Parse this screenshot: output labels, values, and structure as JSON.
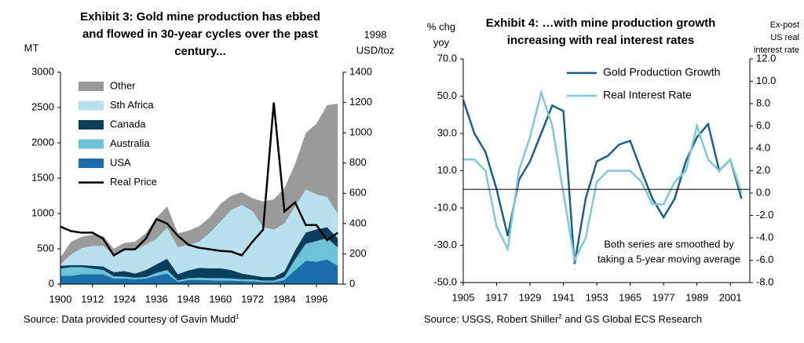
{
  "chart_data": [
    {
      "type": "stacked_area",
      "title": [
        "Exhibit 3: Gold mine production has ebbed",
        "and flowed in 30-year cycles over the past",
        "century..."
      ],
      "y_label": "MT",
      "y2_label": [
        "1998",
        "USD/toz"
      ],
      "source": [
        "Source: Data provided courtesy of Gavin Mudd",
        "1"
      ],
      "x": [
        1900,
        1904,
        1908,
        1912,
        1916,
        1920,
        1924,
        1928,
        1932,
        1936,
        1940,
        1944,
        1948,
        1952,
        1956,
        1960,
        1964,
        1968,
        1972,
        1976,
        1980,
        1984,
        1988,
        1992,
        1996,
        2000,
        2004
      ],
      "xlim": [
        1900,
        2006
      ],
      "xticks": [
        1900,
        1912,
        1924,
        1936,
        1948,
        1960,
        1972,
        1984,
        1996
      ],
      "ylim": [
        0,
        3000
      ],
      "yticks": [
        0,
        500,
        1000,
        1500,
        2000,
        2500,
        3000
      ],
      "y2lim": [
        0,
        1400
      ],
      "y2ticks": [
        0,
        200,
        400,
        600,
        800,
        1000,
        1200,
        1400
      ],
      "legend": "upper left",
      "series": [
        {
          "name": "USA",
          "color": "#1b6ea8",
          "values": [
            120,
            120,
            140,
            140,
            140,
            80,
            80,
            70,
            80,
            120,
            150,
            30,
            60,
            60,
            55,
            50,
            50,
            45,
            40,
            30,
            30,
            60,
            200,
            330,
            320,
            350,
            260
          ]
        },
        {
          "name": "Australia",
          "color": "#6dc3da",
          "values": [
            100,
            120,
            100,
            80,
            60,
            30,
            25,
            20,
            20,
            40,
            50,
            20,
            25,
            30,
            30,
            35,
            30,
            25,
            25,
            20,
            20,
            40,
            150,
            240,
            290,
            300,
            260
          ]
        },
        {
          "name": "Canada",
          "color": "#0b3d5c",
          "values": [
            40,
            30,
            30,
            40,
            50,
            60,
            80,
            60,
            100,
            120,
            160,
            90,
            110,
            140,
            140,
            140,
            120,
            80,
            60,
            50,
            50,
            80,
            130,
            160,
            165,
            155,
            130
          ]
        },
        {
          "name": "Sth Africa",
          "color": "#b8e1ed",
          "values": [
            20,
            150,
            240,
            280,
            290,
            250,
            300,
            330,
            360,
            360,
            440,
            380,
            360,
            370,
            500,
            660,
            850,
            970,
            910,
            710,
            670,
            680,
            620,
            610,
            495,
            430,
            340
          ]
        },
        {
          "name": "Other",
          "color": "#9a9a9a",
          "values": [
            100,
            180,
            160,
            160,
            140,
            80,
            100,
            120,
            160,
            300,
            300,
            200,
            200,
            220,
            220,
            250,
            200,
            180,
            180,
            360,
            430,
            500,
            600,
            800,
            1000,
            1300,
            1560
          ]
        },
        {
          "name": "Real Price",
          "color": "#000000",
          "axis": "y2",
          "line": true,
          "values": [
            380,
            350,
            340,
            340,
            300,
            190,
            230,
            230,
            300,
            430,
            400,
            320,
            260,
            240,
            230,
            220,
            215,
            190,
            280,
            360,
            1200,
            480,
            540,
            390,
            390,
            290,
            340
          ]
        }
      ]
    },
    {
      "type": "line",
      "title": [
        "Exhibit 4: …with mine production growth",
        "increasing with real interest rates"
      ],
      "y_label": [
        "% chg",
        "yoy"
      ],
      "y2_label": [
        "Ex-post",
        "US real",
        "interest rate"
      ],
      "source": [
        "Source: USGS, Robert Shiller",
        "2",
        " and GS Global ECS Research"
      ],
      "annotation": [
        "Both series are smoothed by",
        "taking a 5-year moving average"
      ],
      "reference_line": 0,
      "x": [
        1905,
        1909,
        1913,
        1917,
        1921,
        1925,
        1929,
        1933,
        1937,
        1941,
        1945,
        1949,
        1953,
        1957,
        1961,
        1965,
        1969,
        1973,
        1977,
        1981,
        1985,
        1989,
        1993,
        1997,
        2001,
        2005
      ],
      "xlim": [
        1905,
        2008
      ],
      "xticks": [
        1905,
        1917,
        1929,
        1941,
        1953,
        1965,
        1977,
        1989,
        2001
      ],
      "ylim": [
        -50,
        70
      ],
      "yticks": [
        {
          "value": -50,
          "label": "-50.0"
        },
        {
          "value": -30,
          "label": "-30.0"
        },
        {
          "value": -10,
          "label": "-10.0"
        },
        {
          "value": 10,
          "label": "10.0"
        },
        {
          "value": 30,
          "label": "30.0"
        },
        {
          "value": 50,
          "label": "50.0"
        },
        {
          "value": 70,
          "label": "70.0"
        }
      ],
      "y2lim": [
        -8,
        12
      ],
      "y2ticks": [
        {
          "value": -8,
          "label": "-8.0"
        },
        {
          "value": -6,
          "label": "-6.0"
        },
        {
          "value": -4,
          "label": "-4.0"
        },
        {
          "value": -2,
          "label": "-2.0"
        },
        {
          "value": 0,
          "label": "0.0"
        },
        {
          "value": 2,
          "label": "2.0"
        },
        {
          "value": 4,
          "label": "4.0"
        },
        {
          "value": 6,
          "label": "6.0"
        },
        {
          "value": 8,
          "label": "8.0"
        },
        {
          "value": 10,
          "label": "10.0"
        },
        {
          "value": 12,
          "label": "12.0"
        }
      ],
      "legend": "upper right",
      "series": [
        {
          "name": "Gold Production Growth",
          "color": "#18618f",
          "values": [
            48,
            30,
            20,
            0,
            -25,
            5,
            15,
            30,
            45,
            42,
            -40,
            -5,
            15,
            18,
            24,
            26,
            10,
            -5,
            -15,
            -5,
            15,
            28,
            35,
            10,
            16,
            -5
          ]
        },
        {
          "name": "Real Interest Rate",
          "color": "#7fc7dc",
          "axis": "y2",
          "values": [
            3,
            3,
            2,
            -3,
            -5,
            2,
            5,
            9,
            6,
            0,
            -6,
            -4,
            1,
            2,
            2,
            2,
            1,
            -1,
            -1,
            1,
            2,
            6,
            3,
            2,
            3,
            0
          ]
        }
      ]
    }
  ]
}
